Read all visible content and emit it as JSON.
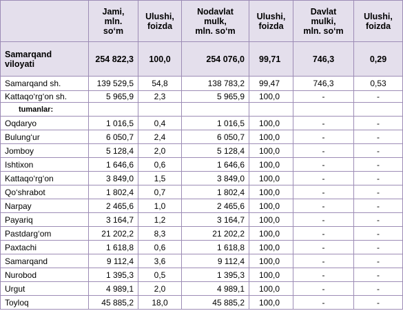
{
  "table": {
    "header": [
      "Jami,\nmln.\nso‘m",
      "Ulushi,\nfoizda",
      "Nodavlat\nmulk,\nmln. so‘m",
      "Ulushi,\nfoizda",
      "Davlat\nmulki,\nmln. so‘m",
      "Ulushi,\nfoizda"
    ],
    "rows": [
      [
        "Samarqand\nviloyati",
        "254 822,3",
        "100,0",
        "254 076,0",
        "99,71",
        "746,3",
        "0,29"
      ],
      [
        "Samarqand sh.",
        "139 529,5",
        "54,8",
        "138 783,2",
        "99,47",
        "746,3",
        "0,53"
      ],
      [
        "Kattaqo‘rg‘on sh.",
        "5 965,9",
        "2,3",
        "5 965,9",
        "100,0",
        "-",
        "-"
      ],
      [
        "tumanlar:"
      ],
      [
        "Oqdaryo",
        "1 016,5",
        "0,4",
        "1 016,5",
        "100,0",
        "-",
        "-"
      ],
      [
        "Bulung‘ur",
        "6 050,7",
        "2,4",
        "6 050,7",
        "100,0",
        "-",
        "-"
      ],
      [
        "Jomboy",
        "5 128,4",
        "2,0",
        "5 128,4",
        "100,0",
        "-",
        "-"
      ],
      [
        "Ishtixon",
        "1 646,6",
        "0,6",
        "1 646,6",
        "100,0",
        "-",
        "-"
      ],
      [
        "Kattaqo‘rg‘on",
        "3 849,0",
        "1,5",
        "3 849,0",
        "100,0",
        "-",
        "-"
      ],
      [
        "Qo‘shrabot",
        "1 802,4",
        "0,7",
        "1 802,4",
        "100,0",
        "-",
        "-"
      ],
      [
        "Narpay",
        "2 465,6",
        "1,0",
        "2 465,6",
        "100,0",
        "-",
        "-"
      ],
      [
        "Payariq",
        "3 164,7",
        "1,2",
        "3 164,7",
        "100,0",
        "-",
        "-"
      ],
      [
        "Pastdarg‘om",
        "21 202,2",
        "8,3",
        "21 202,2",
        "100,0",
        "-",
        "-"
      ],
      [
        "Paxtachi",
        "1 618,8",
        "0,6",
        "1 618,8",
        "100,0",
        "-",
        "-"
      ],
      [
        "Samarqand",
        "9 112,4",
        "3,6",
        "9 112,4",
        "100,0",
        "-",
        "-"
      ],
      [
        "Nurobod",
        "1 395,3",
        "0,5",
        "1 395,3",
        "100,0",
        "-",
        "-"
      ],
      [
        "Urgut",
        "4 989,1",
        "2,0",
        "4 989,1",
        "100,0",
        "-",
        "-"
      ],
      [
        "Toyloq",
        "45 885,2",
        "18,0",
        "45 885,2",
        "100,0",
        "-",
        "-"
      ]
    ]
  }
}
